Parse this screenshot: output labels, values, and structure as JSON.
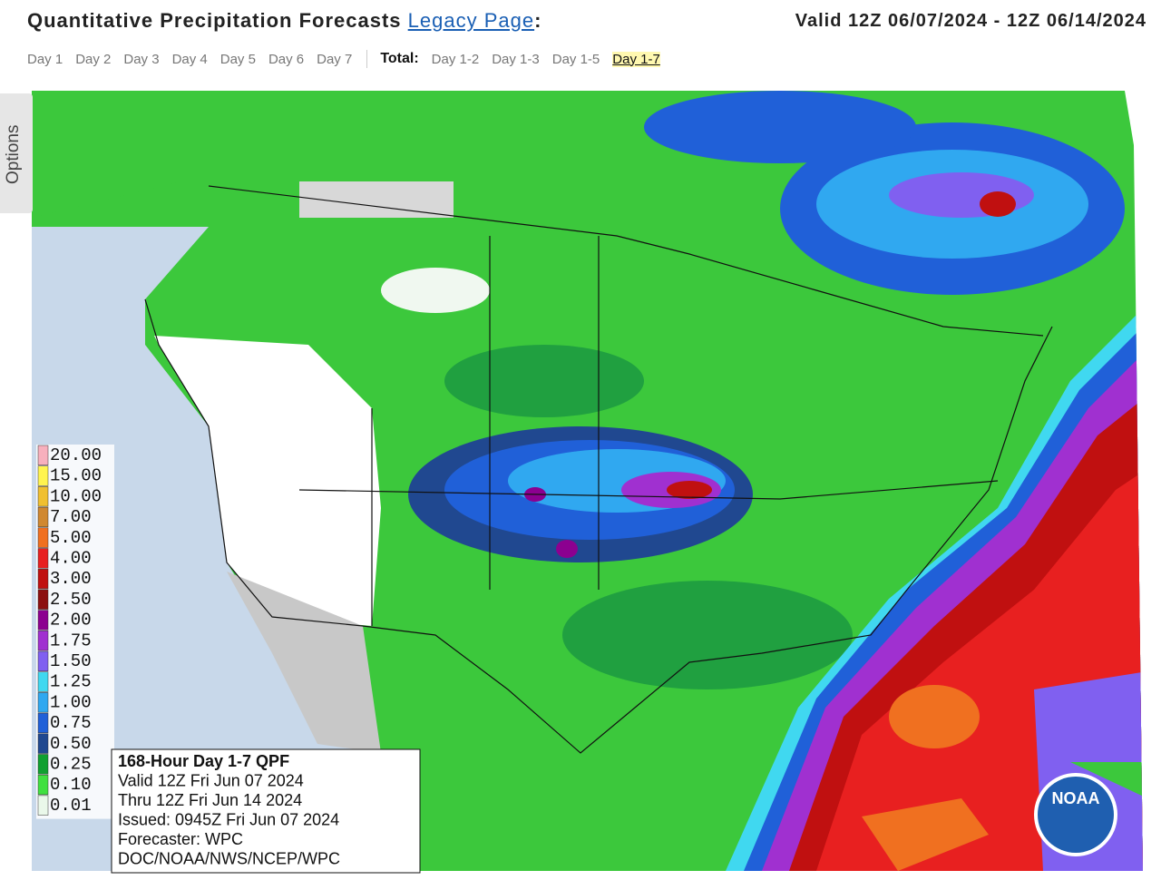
{
  "header": {
    "title": "Quantitative Precipitation Forecasts",
    "link": "Legacy Page",
    "colon": ":",
    "valid": "Valid 12Z 06/07/2024 - 12Z 06/14/2024"
  },
  "tabs": {
    "days": [
      "Day 1",
      "Day 2",
      "Day 3",
      "Day 4",
      "Day 5",
      "Day 6",
      "Day 7"
    ],
    "total_label": "Total:",
    "totals": [
      "Day 1-2",
      "Day 1-3",
      "Day 1-5",
      "Day 1-7"
    ],
    "selected_total": 3
  },
  "options": "Options",
  "map": {
    "legend": [
      {
        "label": "20.00",
        "color": "#f7b0bd"
      },
      {
        "label": "15.00",
        "color": "#fff44f"
      },
      {
        "label": "10.00",
        "color": "#f0c030"
      },
      {
        "label": "7.00",
        "color": "#d08830"
      },
      {
        "label": "5.00",
        "color": "#f07020"
      },
      {
        "label": "4.00",
        "color": "#e82020"
      },
      {
        "label": "3.00",
        "color": "#c01010"
      },
      {
        "label": "2.50",
        "color": "#8c1010"
      },
      {
        "label": "2.00",
        "color": "#8c0090"
      },
      {
        "label": "1.75",
        "color": "#a030d0"
      },
      {
        "label": "1.50",
        "color": "#8060f0"
      },
      {
        "label": "1.25",
        "color": "#40d8f0"
      },
      {
        "label": "1.00",
        "color": "#30a8f0"
      },
      {
        "label": "0.75",
        "color": "#2060d8"
      },
      {
        "label": "0.50",
        "color": "#204890"
      },
      {
        "label": "0.25",
        "color": "#10a030"
      },
      {
        "label": "0.10",
        "color": "#40e040"
      },
      {
        "label": "0.01",
        "color": "#eaf8ea"
      }
    ],
    "info": [
      "168-Hour Day 1-7 QPF",
      "Valid 12Z Fri Jun 07 2024",
      "Thru 12Z Fri Jun 14 2024",
      "Issued: 0945Z Fri Jun 07 2024",
      "Forecaster: WPC",
      "DOC/NOAA/NWS/NCEP/WPC"
    ],
    "logo": "NOAA"
  }
}
